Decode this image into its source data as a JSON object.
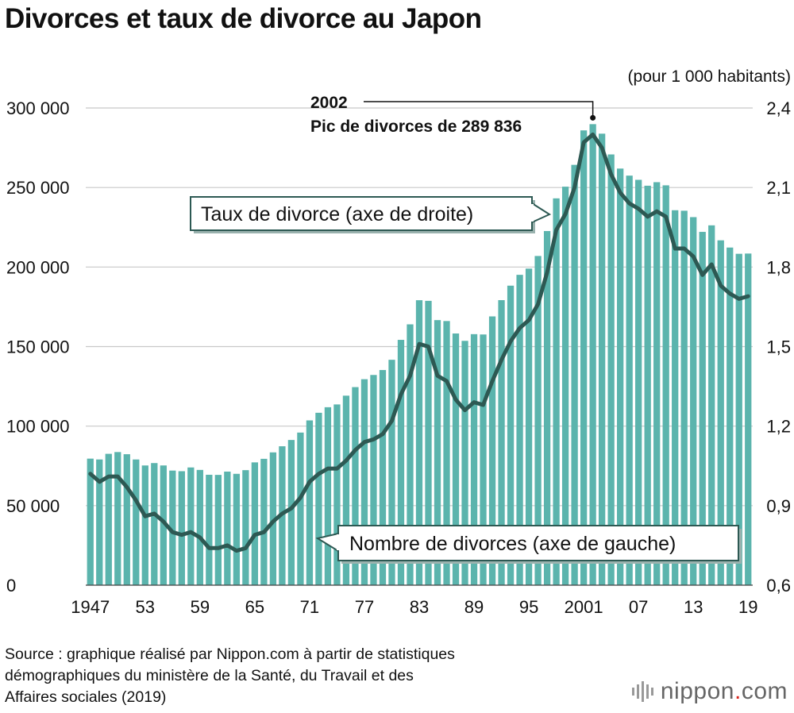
{
  "header": {
    "title": "Divorces et taux de divorce au Japon"
  },
  "chart_data": {
    "type": "bar",
    "title": "Divorces et taux de divorce au Japon",
    "years": [
      1947,
      1948,
      1949,
      1950,
      1951,
      1952,
      1953,
      1954,
      1955,
      1956,
      1957,
      1958,
      1959,
      1960,
      1961,
      1962,
      1963,
      1964,
      1965,
      1966,
      1967,
      1968,
      1969,
      1970,
      1971,
      1972,
      1973,
      1974,
      1975,
      1976,
      1977,
      1978,
      1979,
      1980,
      1981,
      1982,
      1983,
      1984,
      1985,
      1986,
      1987,
      1988,
      1989,
      1990,
      1991,
      1992,
      1993,
      1994,
      1995,
      1996,
      1997,
      1998,
      1999,
      2000,
      2001,
      2002,
      2003,
      2004,
      2005,
      2006,
      2007,
      2008,
      2009,
      2010,
      2011,
      2012,
      2013,
      2014,
      2015,
      2016,
      2017,
      2018,
      2019
    ],
    "x_tick_labels": [
      "1947",
      "53",
      "59",
      "65",
      "71",
      "77",
      "83",
      "89",
      "95",
      "2001",
      "07",
      "13",
      "19"
    ],
    "x_tick_years": [
      1947,
      1953,
      1959,
      1965,
      1971,
      1977,
      1983,
      1989,
      1995,
      2001,
      2007,
      2013,
      2019
    ],
    "series": [
      {
        "name": "Nombre de divorces (axe de gauche)",
        "type": "bar",
        "axis": "left",
        "values": [
          79551,
          79032,
          82575,
          83689,
          82331,
          79021,
          75255,
          76759,
          75267,
          72040,
          71651,
          74004,
          72455,
          69410,
          69323,
          71394,
          69996,
          72306,
          77195,
          79432,
          83478,
          87327,
          91280,
          95937,
          103595,
          108382,
          111877,
          113622,
          119135,
          124512,
          129485,
          132146,
          135250,
          141689,
          154221,
          163980,
          179150,
          178746,
          166640,
          166054,
          158227,
          153600,
          157811,
          157608,
          168969,
          179191,
          188297,
          195106,
          199016,
          206955,
          222635,
          243183,
          250529,
          264246,
          285911,
          289836,
          283854,
          270804,
          261917,
          257475,
          254832,
          251136,
          253353,
          251378,
          235719,
          235406,
          231383,
          222107,
          226215,
          216798,
          212262,
          208333,
          208489
        ]
      },
      {
        "name": "Taux de divorce (axe de droite)",
        "type": "line",
        "axis": "right",
        "values": [
          1.02,
          0.99,
          1.01,
          1.01,
          0.97,
          0.92,
          0.86,
          0.87,
          0.84,
          0.8,
          0.79,
          0.8,
          0.78,
          0.74,
          0.74,
          0.75,
          0.73,
          0.74,
          0.79,
          0.8,
          0.84,
          0.87,
          0.89,
          0.93,
          0.99,
          1.02,
          1.04,
          1.04,
          1.07,
          1.11,
          1.14,
          1.15,
          1.17,
          1.22,
          1.32,
          1.39,
          1.51,
          1.5,
          1.39,
          1.37,
          1.3,
          1.26,
          1.29,
          1.28,
          1.37,
          1.45,
          1.52,
          1.57,
          1.6,
          1.66,
          1.78,
          1.94,
          2.0,
          2.1,
          2.27,
          2.3,
          2.25,
          2.15,
          2.08,
          2.04,
          2.02,
          1.99,
          2.01,
          1.99,
          1.87,
          1.87,
          1.84,
          1.77,
          1.81,
          1.73,
          1.7,
          1.68,
          1.69
        ]
      }
    ],
    "y_left": {
      "min": 0,
      "max": 300000,
      "tick_values": [
        0,
        50000,
        100000,
        150000,
        200000,
        250000,
        300000
      ],
      "tick_labels": [
        "0",
        "50 000",
        "100 000",
        "150 000",
        "200 000",
        "250 000",
        "300 000"
      ]
    },
    "y_right": {
      "min": 0.6,
      "max": 2.4,
      "tick_values": [
        0.6,
        0.9,
        1.2,
        1.5,
        1.8,
        2.1,
        2.4
      ],
      "tick_labels": [
        "0,6",
        "0,9",
        "1,2",
        "1,5",
        "1,8",
        "2,1",
        "2,4"
      ],
      "unit": "(pour 1 000 habitants)"
    },
    "grid": true,
    "annotations": {
      "peak_year": "2002",
      "peak_text": "Pic de divorces de 289 836",
      "rate_callout": "Taux de divorce (axe de droite)",
      "count_callout": "Nombre de divorces (axe de gauche)"
    },
    "colors": {
      "bar": "#5bb4ad",
      "line": "#2d5953",
      "grid": "#c8c8c8",
      "callout_border": "#2d5953"
    }
  },
  "footer": {
    "source_lines": [
      "Source : graphique réalisé par Nippon.com à partir de statistiques",
      "démographiques du ministère de la Santé, du Travail et des",
      "Affaires sociales (2019)"
    ],
    "logo_main": "nippon",
    "logo_dot": ".",
    "logo_suffix": "com"
  }
}
